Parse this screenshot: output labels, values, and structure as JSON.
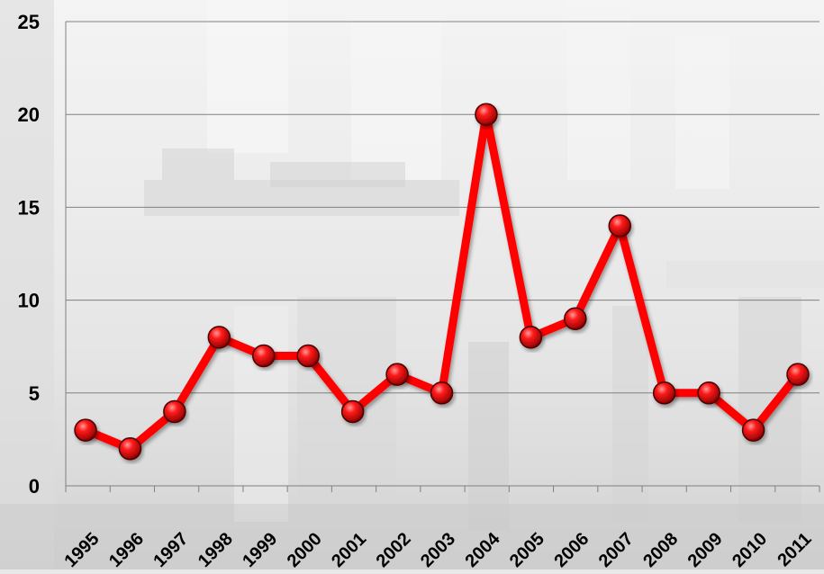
{
  "chart_data": {
    "type": "line",
    "title": "",
    "xlabel": "",
    "ylabel": "",
    "categories": [
      "1995",
      "1996",
      "1997",
      "1998",
      "1999",
      "2000",
      "2001",
      "2002",
      "2003",
      "2004",
      "2005",
      "2006",
      "2007",
      "2008",
      "2009",
      "2010",
      "2011"
    ],
    "series": [
      {
        "values": [
          3,
          2,
          4,
          8,
          7,
          7,
          4,
          6,
          5,
          20,
          8,
          9,
          14,
          5,
          5,
          3,
          6
        ]
      }
    ],
    "ylim": [
      0,
      25
    ],
    "yticks": [
      0,
      5,
      10,
      15,
      20,
      25
    ],
    "grid": true,
    "legend": "none",
    "colors": {
      "line": "#ff0000",
      "marker": "#e00000",
      "gridline": "#808080",
      "text": "#000000",
      "background": "#e9e9e9"
    }
  }
}
